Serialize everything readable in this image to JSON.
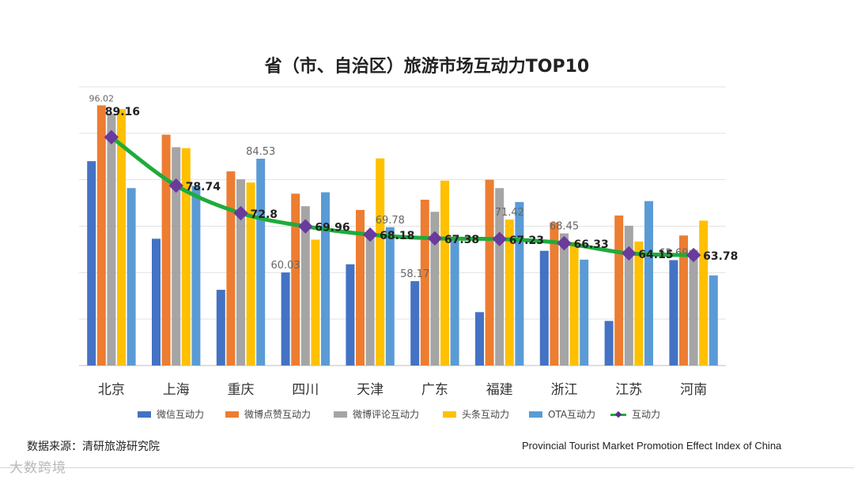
{
  "header": {
    "title": "省（市、自治区）旅游市场互动力TOP10"
  },
  "footer": {
    "source": "数据来源：清研旅游研究院",
    "caption": "Provincial Tourist Market Promotion Effect Index of China",
    "watermark": "大数跨境"
  },
  "colors": {
    "wechat": "#4472c4",
    "weibo_like": "#ed7d31",
    "weibo_comment": "#a5a5a5",
    "toutiao": "#ffc000",
    "ota": "#5b9bd5",
    "line": "#1fab3b",
    "marker": "#6a3a9c"
  },
  "chart_data": {
    "type": "bar",
    "title": "省（市、自治区）旅游市场互动力TOP10",
    "categories": [
      "北京",
      "上海",
      "重庆",
      "四川",
      "天津",
      "广东",
      "福建",
      "浙江",
      "江苏",
      "河南"
    ],
    "ylim": [
      40,
      100
    ],
    "grid": true,
    "legend_position": "bottom",
    "series": [
      {
        "name": "微信互动力",
        "key": "wechat",
        "values": [
          84.0,
          67.3,
          56.3,
          60.03,
          61.8,
          58.17,
          51.5,
          64.7,
          49.6,
          62.69
        ]
      },
      {
        "name": "微博点赞互动力",
        "key": "weibo_like",
        "values": [
          96.02,
          89.7,
          81.8,
          77.0,
          73.5,
          75.7,
          80.0,
          70.8,
          72.3,
          68.0
        ]
      },
      {
        "name": "微博评论互动力",
        "key": "weibo_comment",
        "values": [
          94.2,
          87.0,
          80.1,
          74.3,
          68.3,
          73.1,
          78.2,
          68.45,
          70.1,
          64.9
        ]
      },
      {
        "name": "头条互动力",
        "key": "toutiao",
        "values": [
          95.2,
          86.8,
          79.4,
          67.1,
          84.6,
          79.8,
          71.42,
          66.6,
          66.7,
          71.2
        ]
      },
      {
        "name": "OTA互动力",
        "key": "ota",
        "values": [
          78.2,
          78.7,
          84.53,
          77.3,
          69.78,
          67.4,
          75.2,
          62.8,
          75.4,
          59.4
        ]
      }
    ],
    "line_series": {
      "name": "互动力",
      "values": [
        89.16,
        78.74,
        72.8,
        69.96,
        68.18,
        67.38,
        67.23,
        66.33,
        64.15,
        63.78
      ]
    },
    "bar_labels": [
      {
        "category": "北京",
        "series": "微博点赞互动力",
        "text": "96.02"
      },
      {
        "category": "重庆",
        "series": "OTA互动力",
        "text": "84.53"
      },
      {
        "category": "四川",
        "series": "微信互动力",
        "text": "60.03"
      },
      {
        "category": "天津",
        "series": "OTA互动力",
        "text": "69.78"
      },
      {
        "category": "广东",
        "series": "微信互动力",
        "text": "58.17"
      },
      {
        "category": "福建",
        "series": "头条互动力",
        "text": "71.42"
      },
      {
        "category": "浙江",
        "series": "微博评论互动力",
        "text": "68.45"
      },
      {
        "category": "河南",
        "series": "微信互动力",
        "text": "62.69"
      }
    ]
  }
}
